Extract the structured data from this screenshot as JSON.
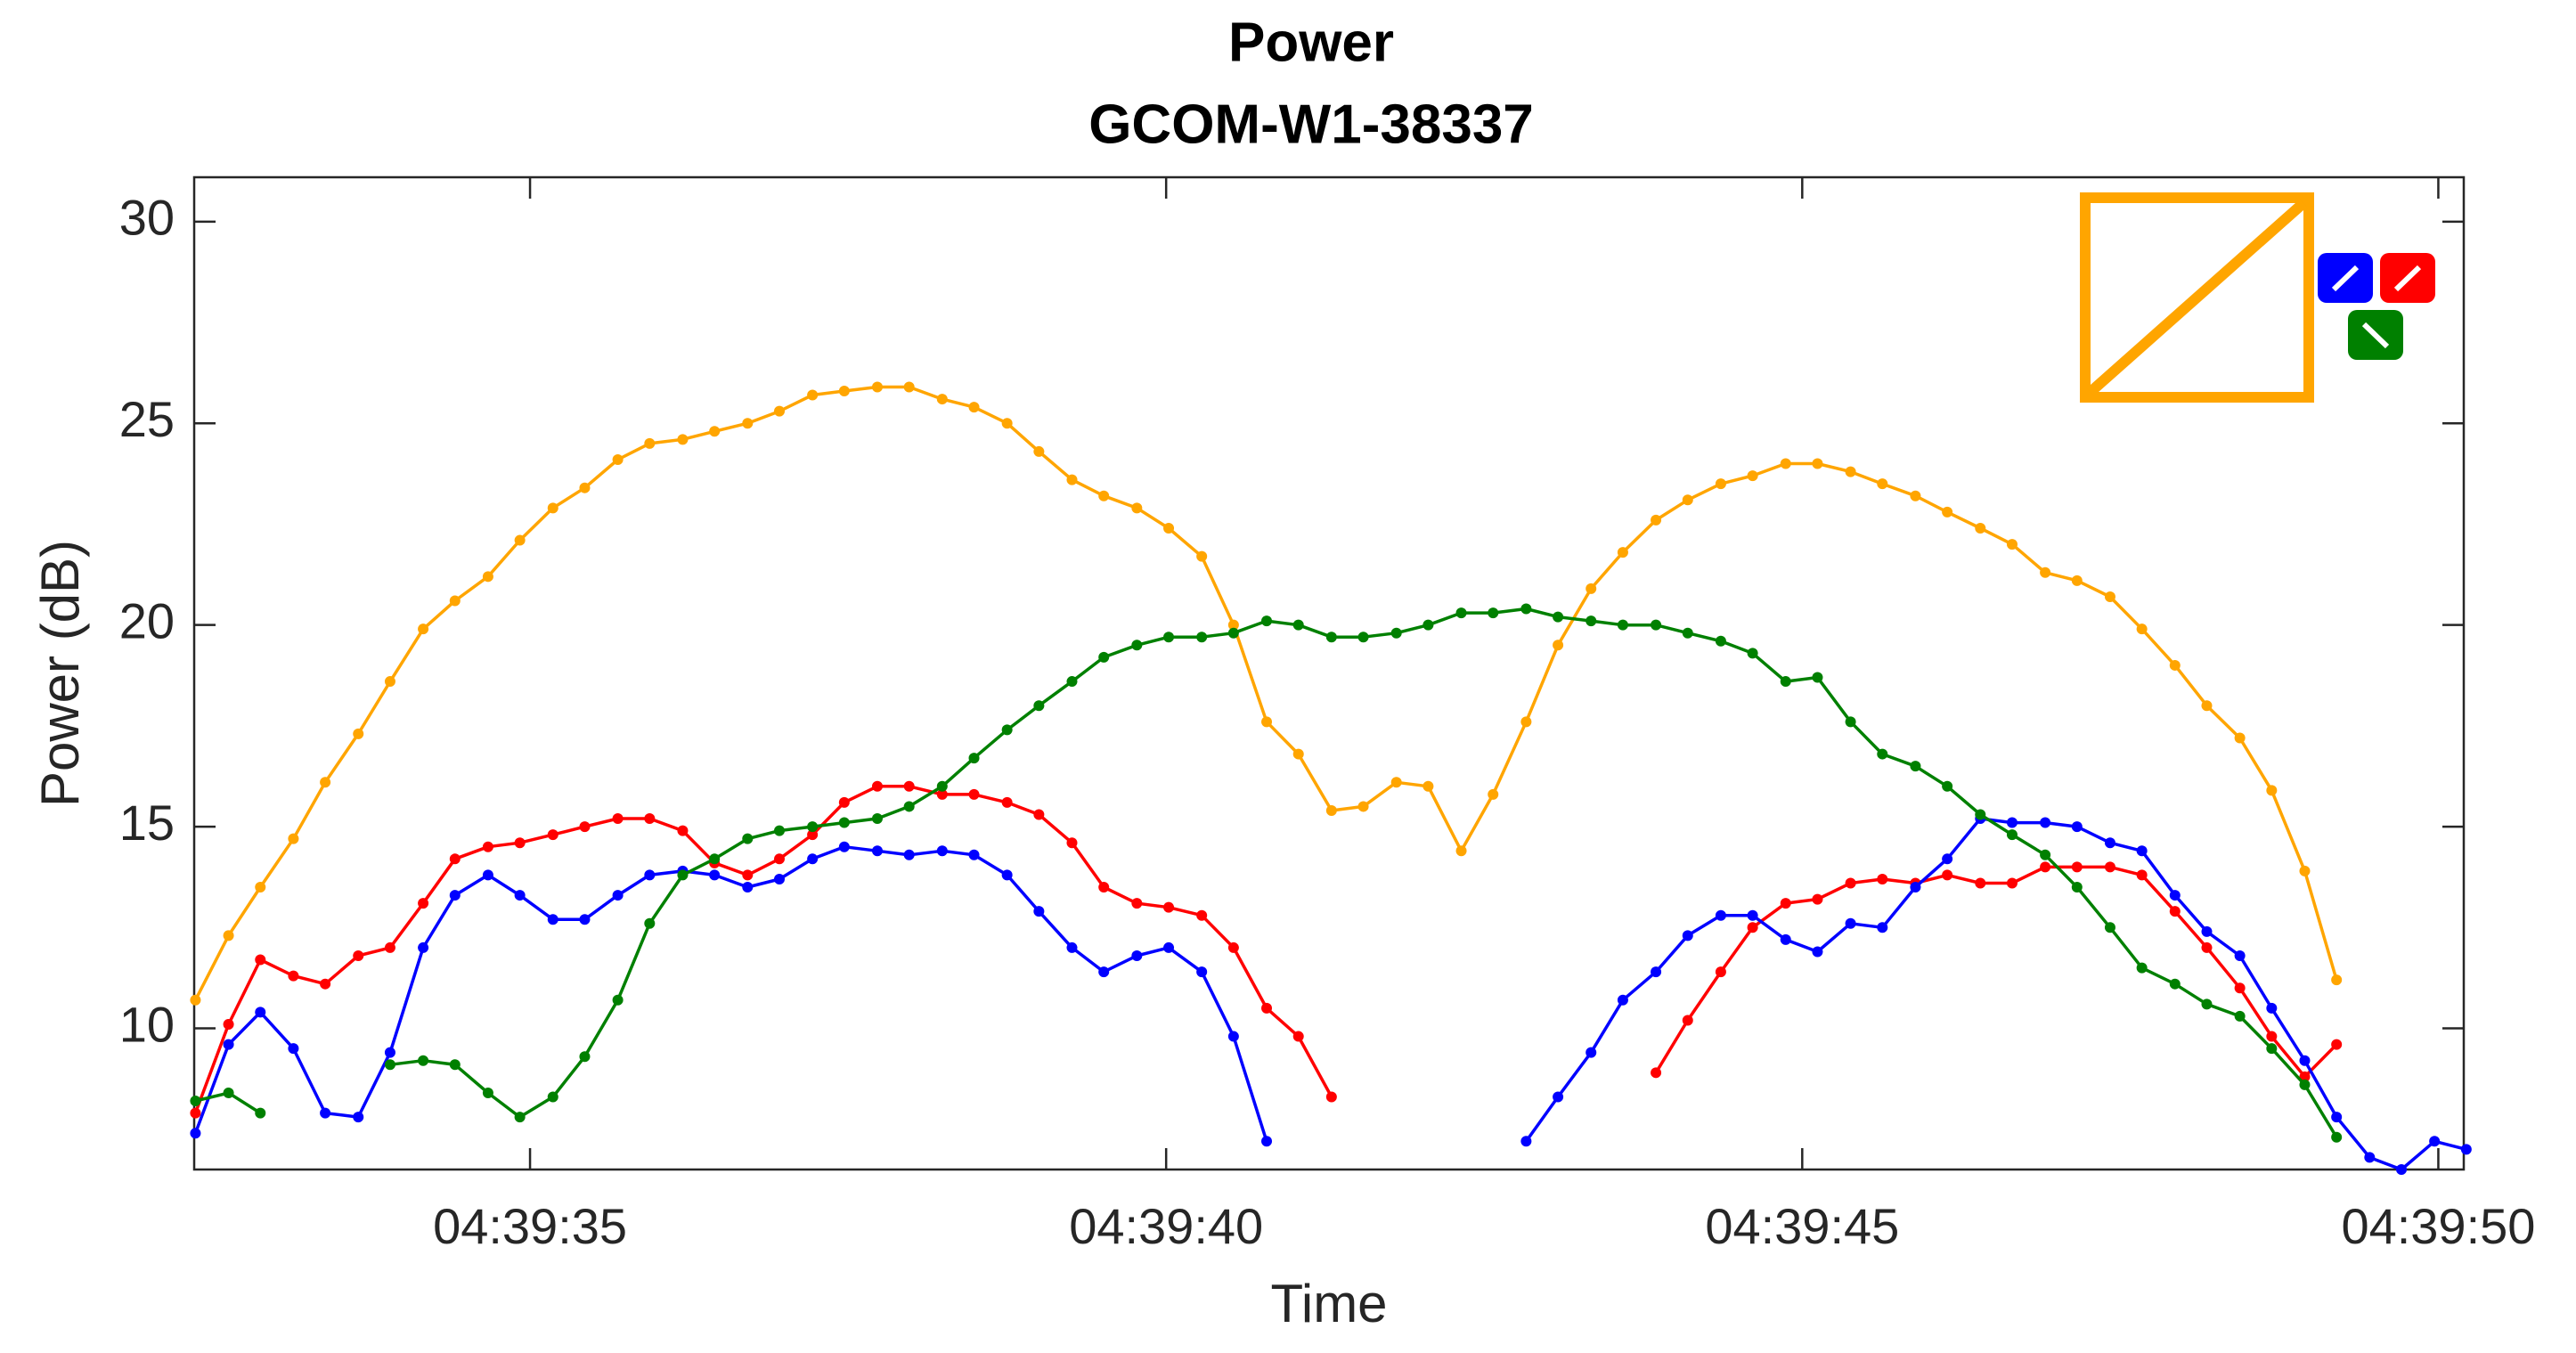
{
  "chart_data": {
    "type": "line",
    "title": "Power",
    "subtitle": "GCOM-W1-38337",
    "x_label": "Time",
    "y_label": "Power (dB)",
    "x": [
      32.37,
      32.63,
      32.88,
      33.14,
      33.39,
      33.65,
      33.9,
      34.16,
      34.41,
      34.67,
      34.92,
      35.18,
      35.43,
      35.69,
      35.94,
      36.2,
      36.45,
      36.71,
      36.96,
      37.22,
      37.47,
      37.73,
      37.98,
      38.24,
      38.49,
      38.75,
      39.0,
      39.26,
      39.51,
      39.77,
      40.02,
      40.28,
      40.53,
      40.79,
      41.04,
      41.3,
      41.55,
      41.81,
      42.06,
      42.32,
      42.57,
      42.83,
      43.08,
      43.34,
      43.59,
      43.85,
      44.1,
      44.36,
      44.61,
      44.87,
      45.12,
      45.38,
      45.63,
      45.89,
      46.14,
      46.4,
      46.65,
      46.91,
      47.16,
      47.42,
      47.67,
      47.93,
      48.18,
      48.44,
      48.69,
      48.95,
      49.2,
      49.46,
      49.71,
      49.97,
      50.22
    ],
    "series": [
      {
        "color": "#ffa500",
        "values": [
          10.7,
          12.3,
          13.5,
          14.7,
          16.1,
          17.3,
          18.6,
          19.9,
          20.6,
          21.2,
          22.1,
          22.9,
          23.4,
          24.1,
          24.5,
          24.6,
          24.8,
          25.0,
          25.3,
          25.7,
          25.8,
          25.9,
          25.9,
          25.6,
          25.4,
          25.0,
          24.3,
          23.6,
          23.2,
          22.9,
          22.4,
          21.7,
          20.0,
          17.6,
          16.8,
          15.4,
          15.5,
          16.1,
          16.0,
          14.4,
          15.8,
          17.6,
          19.5,
          20.9,
          21.8,
          22.6,
          23.1,
          23.5,
          23.7,
          24.0,
          24.0,
          23.8,
          23.5,
          23.2,
          22.8,
          22.4,
          22.0,
          21.3,
          21.1,
          20.7,
          19.9,
          19.0,
          18.0,
          17.2,
          15.9,
          13.9,
          11.2,
          null,
          null,
          null,
          null
        ]
      },
      {
        "color": "#ff0000",
        "values": [
          7.9,
          10.1,
          11.7,
          11.3,
          11.1,
          11.8,
          12.0,
          13.1,
          14.2,
          14.5,
          14.6,
          14.8,
          15.0,
          15.2,
          15.2,
          14.9,
          14.1,
          13.8,
          14.2,
          14.8,
          15.6,
          16.0,
          16.0,
          15.8,
          15.8,
          15.6,
          15.3,
          14.6,
          13.5,
          13.1,
          13.0,
          12.8,
          12.0,
          10.5,
          9.8,
          8.3,
          null,
          null,
          null,
          null,
          null,
          null,
          null,
          null,
          null,
          8.9,
          10.2,
          11.4,
          12.5,
          13.1,
          13.2,
          13.6,
          13.7,
          13.6,
          13.8,
          13.6,
          13.6,
          14.0,
          14.0,
          14.0,
          13.8,
          12.9,
          12.0,
          11.0,
          9.8,
          8.8,
          9.6,
          null,
          null,
          null,
          null
        ]
      },
      {
        "color": "#0000ff",
        "values": [
          7.4,
          9.6,
          10.4,
          9.5,
          7.9,
          7.8,
          9.4,
          12.0,
          13.3,
          13.8,
          13.3,
          12.7,
          12.7,
          13.3,
          13.8,
          13.9,
          13.8,
          13.5,
          13.7,
          14.2,
          14.5,
          14.4,
          14.3,
          14.4,
          14.3,
          13.8,
          12.9,
          12.0,
          11.4,
          11.8,
          12.0,
          11.4,
          9.8,
          7.2,
          null,
          null,
          null,
          null,
          null,
          null,
          null,
          7.2,
          8.3,
          9.4,
          10.7,
          11.4,
          12.3,
          12.8,
          12.8,
          12.2,
          11.9,
          12.6,
          12.5,
          13.5,
          14.2,
          15.2,
          15.1,
          15.1,
          15.0,
          14.6,
          14.4,
          13.3,
          12.4,
          11.8,
          10.5,
          9.2,
          7.8,
          6.8,
          6.5,
          7.2,
          7.0
        ]
      },
      {
        "color": "#008000",
        "values": [
          8.2,
          8.4,
          7.9,
          null,
          null,
          null,
          9.1,
          9.2,
          9.1,
          8.4,
          7.8,
          8.3,
          9.3,
          10.7,
          12.6,
          13.8,
          14.2,
          14.7,
          14.9,
          15.0,
          15.1,
          15.2,
          15.5,
          16.0,
          16.7,
          17.4,
          18.0,
          18.6,
          19.2,
          19.5,
          19.7,
          19.7,
          19.8,
          20.1,
          20.0,
          19.7,
          19.7,
          19.8,
          20.0,
          20.3,
          20.3,
          20.4,
          20.2,
          20.1,
          20.0,
          20.0,
          19.8,
          19.6,
          19.3,
          18.6,
          18.7,
          17.6,
          16.8,
          16.5,
          16.0,
          15.3,
          14.8,
          14.3,
          13.5,
          12.5,
          11.5,
          11.1,
          10.6,
          10.3,
          9.5,
          8.6,
          7.3,
          null,
          null,
          null,
          null
        ]
      }
    ],
    "xlim": [
      32.36,
      50.2
    ],
    "xticks": [
      {
        "value": 35,
        "label": "04:39:35"
      },
      {
        "value": 40,
        "label": "04:39:40"
      },
      {
        "value": 45,
        "label": "04:39:45"
      },
      {
        "value": 50,
        "label": "04:39:50"
      }
    ],
    "ylim": [
      6.5,
      31.1
    ],
    "yticks": [
      10,
      15,
      20,
      25,
      30
    ],
    "grid": false
  }
}
